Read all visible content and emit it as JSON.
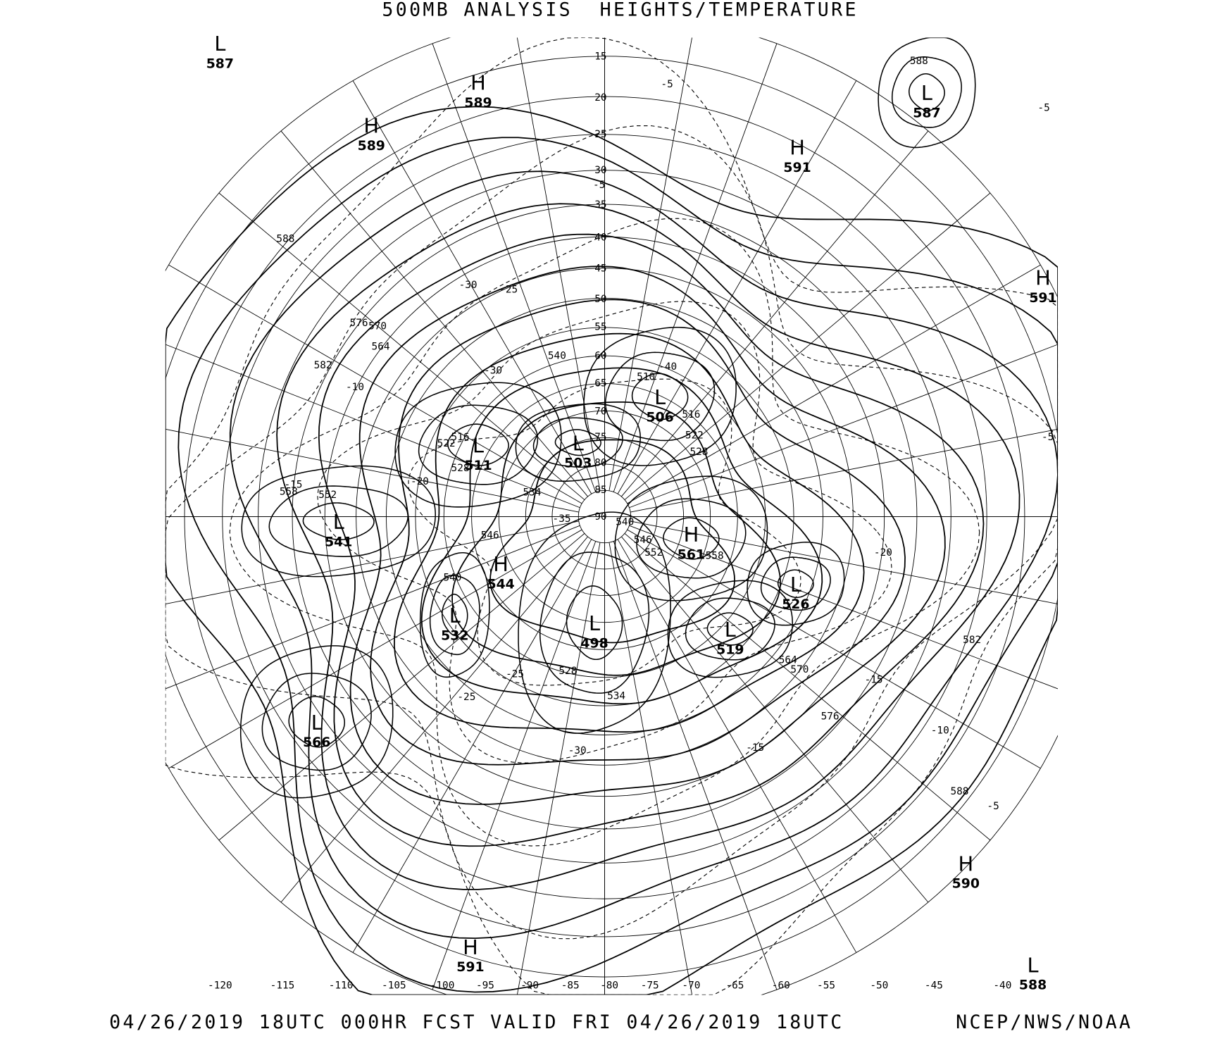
{
  "header": {
    "title": "500MB ANALYSIS  HEIGHTS/TEMPERATURE"
  },
  "footer": {
    "valid_text": "04/26/2019 18UTC 000HR FCST VALID FRI 04/26/2019 18UTC",
    "source": "NCEP/NWS/NOAA"
  },
  "map": {
    "projection": "polar stereographic, north pole",
    "line_color": "#000000",
    "background": "#ffffff",
    "latitude_labels": [
      "15",
      "20",
      "25",
      "30",
      "35",
      "40",
      "45",
      "50",
      "55",
      "60",
      "65",
      "70",
      "75",
      "80",
      "85",
      "90"
    ],
    "longitude_labels": [
      "-120",
      "-115",
      "-110",
      "-105",
      "-100",
      "-95",
      "-90",
      "-85",
      "-80",
      "-75",
      "-70",
      "-65",
      "-60",
      "-55",
      "-50",
      "-45",
      "-40"
    ],
    "pressure_centers": [
      {
        "type": "L",
        "value": "587"
      },
      {
        "type": "H",
        "value": "589"
      },
      {
        "type": "H",
        "value": "589"
      },
      {
        "type": "L",
        "value": "587"
      },
      {
        "type": "H",
        "value": "591"
      },
      {
        "type": "H",
        "value": "591"
      },
      {
        "type": "L",
        "value": "511"
      },
      {
        "type": "L",
        "value": "503"
      },
      {
        "type": "L",
        "value": "506"
      },
      {
        "type": "L",
        "value": "541"
      },
      {
        "type": "H",
        "value": "561"
      },
      {
        "type": "H",
        "value": "544"
      },
      {
        "type": "L",
        "value": "532"
      },
      {
        "type": "L",
        "value": "498"
      },
      {
        "type": "L",
        "value": "526"
      },
      {
        "type": "L",
        "value": "519"
      },
      {
        "type": "L",
        "value": "566"
      },
      {
        "type": "H",
        "value": "590"
      },
      {
        "type": "H",
        "value": "591"
      },
      {
        "type": "L",
        "value": "588"
      }
    ],
    "height_labels": [
      "588",
      "576",
      "570",
      "564",
      "582",
      "540",
      "510",
      "516",
      "522",
      "528",
      "534",
      "546",
      "540",
      "540",
      "546",
      "552",
      "558",
      "558",
      "552",
      "528",
      "516",
      "522",
      "564",
      "570",
      "576",
      "582",
      "588",
      "534",
      "528",
      "588"
    ],
    "temperature_labels": [
      "-5",
      "-5",
      "-5",
      "-30",
      "-25",
      "-10",
      "-30",
      "-40",
      "-20",
      "-15",
      "-35",
      "-20",
      "-15",
      "-10",
      "-15",
      "-30",
      "-25",
      "-25",
      "-5",
      "-5"
    ]
  }
}
